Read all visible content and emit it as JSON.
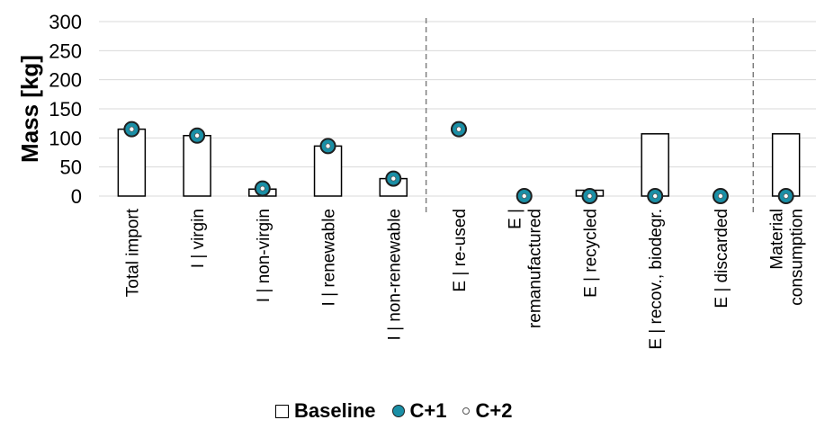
{
  "chart_data": {
    "type": "bar",
    "ylabel": "Mass [kg]",
    "ylim": [
      0,
      300
    ],
    "yticks": [
      0,
      50,
      100,
      150,
      200,
      250,
      300
    ],
    "categories": [
      "Total import",
      "I | virgin",
      "I | non-virgin",
      "I | renewable",
      "I | non-renewable",
      "E | re-used",
      "E |\nremanufactured",
      "E | recycled",
      "E | recov., biodegr.",
      "E | discarded",
      "Material\nconsumption"
    ],
    "series": [
      {
        "name": "Baseline",
        "marker": "bar",
        "values": [
          115,
          104,
          12,
          86,
          30,
          0,
          0,
          10,
          107,
          0,
          107
        ]
      },
      {
        "name": "C+1",
        "marker": "circle-filled",
        "values": [
          115,
          104,
          13,
          86,
          30,
          115,
          0,
          0,
          0,
          0,
          0
        ]
      },
      {
        "name": "C+2",
        "marker": "circle-small",
        "values": [
          115,
          104,
          13,
          86,
          30,
          115,
          0,
          0,
          0,
          0,
          0
        ]
      }
    ],
    "separators_after_category_index": [
      4,
      9
    ],
    "grid": "horizontal",
    "legend_position": "bottom"
  },
  "colors": {
    "c1_fill": "#1a8fa6",
    "c1_stroke": "#1f1f1f",
    "c2_fill": "#ffffff",
    "grid": "#d9d9d9",
    "separator": "#7f7f7f"
  },
  "legend": {
    "baseline_label": "Baseline",
    "c1_label": "C+1",
    "c2_label": "C+2"
  }
}
